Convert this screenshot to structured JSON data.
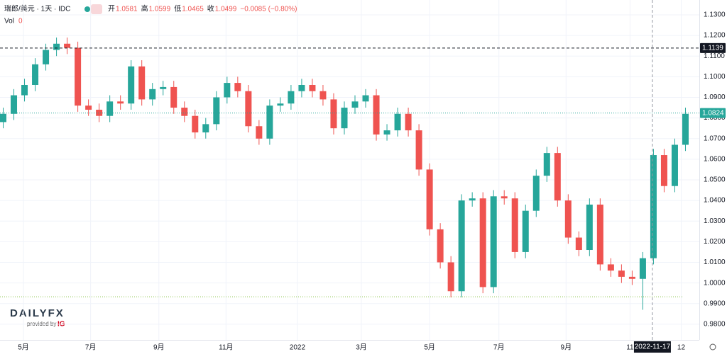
{
  "header": {
    "symbol": "瑞郎/美元 · 1天 · IDC",
    "ohlc": [
      {
        "label": "开",
        "value": "1.0581"
      },
      {
        "label": "高",
        "value": "1.0599"
      },
      {
        "label": "低",
        "value": "1.0465"
      },
      {
        "label": "收",
        "value": "1.0499"
      }
    ],
    "change": "−0.0085 (−0.80%)",
    "volume_label": "Vol",
    "volume": "0"
  },
  "logo": {
    "brand": "DAILYFX",
    "provided_by": "provided by",
    "partner": "IG"
  },
  "chart_data": {
    "type": "candlestick",
    "open": [
      1.078,
      1.082,
      1.091,
      1.096,
      1.106,
      1.113,
      1.116,
      1.114,
      1.086,
      1.084,
      1.081,
      1.088,
      1.087,
      1.105,
      1.089,
      1.094,
      1.095,
      1.085,
      1.081,
      1.073,
      1.077,
      1.09,
      1.097,
      1.093,
      1.076,
      1.07,
      1.086,
      1.087,
      1.093,
      1.096,
      1.093,
      1.089,
      1.075,
      1.085,
      1.088,
      1.091,
      1.072,
      1.074,
      1.082,
      1.074,
      1.055,
      1.026,
      1.01,
      0.996,
      1.04,
      1.041,
      0.998,
      1.042,
      1.041,
      1.015,
      1.035,
      1.052,
      1.063,
      1.04,
      1.022,
      1.016,
      1.038,
      1.009,
      1.006,
      1.003,
      1.002,
      1.012,
      1.062,
      1.047,
      1.067
    ],
    "high": [
      1.085,
      1.094,
      1.099,
      1.109,
      1.116,
      1.119,
      1.119,
      1.117,
      1.089,
      1.087,
      1.091,
      1.091,
      1.108,
      1.108,
      1.097,
      1.098,
      1.098,
      1.088,
      1.084,
      1.08,
      1.093,
      1.1,
      1.1,
      1.096,
      1.079,
      1.089,
      1.09,
      1.096,
      1.099,
      1.099,
      1.096,
      1.092,
      1.088,
      1.091,
      1.094,
      1.094,
      1.077,
      1.085,
      1.085,
      1.077,
      1.058,
      1.029,
      1.013,
      1.043,
      1.044,
      1.044,
      1.045,
      1.045,
      1.044,
      1.038,
      1.055,
      1.066,
      1.066,
      1.043,
      1.025,
      1.041,
      1.041,
      1.012,
      1.009,
      1.006,
      1.015,
      1.065,
      1.065,
      1.07,
      1.085
    ],
    "low": [
      1.075,
      1.079,
      1.088,
      1.093,
      1.103,
      1.11,
      1.111,
      1.083,
      1.081,
      1.078,
      1.078,
      1.084,
      1.084,
      1.086,
      1.086,
      1.091,
      1.082,
      1.078,
      1.07,
      1.07,
      1.074,
      1.087,
      1.09,
      1.073,
      1.067,
      1.067,
      1.083,
      1.084,
      1.09,
      1.09,
      1.086,
      1.072,
      1.072,
      1.082,
      1.085,
      1.069,
      1.069,
      1.071,
      1.071,
      1.052,
      1.023,
      1.007,
      0.993,
      0.993,
      1.037,
      0.995,
      0.995,
      1.038,
      1.012,
      1.012,
      1.032,
      1.049,
      1.037,
      1.019,
      1.013,
      1.013,
      1.006,
      1.003,
      1.0,
      0.999,
      0.987,
      1.009,
      1.044,
      1.044,
      1.064
    ],
    "close": [
      1.082,
      1.091,
      1.096,
      1.106,
      1.113,
      1.116,
      1.114,
      1.086,
      1.084,
      1.081,
      1.088,
      1.087,
      1.105,
      1.089,
      1.094,
      1.095,
      1.085,
      1.081,
      1.073,
      1.077,
      1.09,
      1.097,
      1.093,
      1.076,
      1.07,
      1.086,
      1.087,
      1.093,
      1.096,
      1.093,
      1.089,
      1.075,
      1.085,
      1.088,
      1.091,
      1.072,
      1.074,
      1.082,
      1.074,
      1.055,
      1.026,
      1.01,
      0.996,
      1.04,
      1.041,
      0.998,
      1.042,
      1.041,
      1.015,
      1.035,
      1.052,
      1.063,
      1.04,
      1.022,
      1.016,
      1.038,
      1.009,
      1.006,
      1.003,
      1.002,
      1.012,
      1.062,
      1.047,
      1.067,
      1.082
    ],
    "up_color": "#26a69a",
    "down_color": "#ef5350",
    "xlim": [
      0,
      65.6
    ],
    "xticks": [
      {
        "value": 2.2,
        "label": "5月"
      },
      {
        "value": 8.5,
        "label": "7月"
      },
      {
        "value": 14.9,
        "label": "9月"
      },
      {
        "value": 21.2,
        "label": "11月"
      },
      {
        "value": 27.9,
        "label": "2022"
      },
      {
        "value": 33.9,
        "label": "3月"
      },
      {
        "value": 40.3,
        "label": "5月"
      },
      {
        "value": 46.8,
        "label": "7月"
      },
      {
        "value": 53.1,
        "label": "9月"
      },
      {
        "value": 59.1,
        "label": "11"
      },
      {
        "value": 63.9,
        "label": "12"
      }
    ],
    "ylim": [
      0.9724,
      1.1372
    ],
    "yticks": [
      {
        "value": 0.98,
        "label": "0.9800"
      },
      {
        "value": 0.99,
        "label": "0.9900"
      },
      {
        "value": 1.0,
        "label": "1.0000"
      },
      {
        "value": 1.01,
        "label": "1.0100"
      },
      {
        "value": 1.02,
        "label": "1.0200"
      },
      {
        "value": 1.03,
        "label": "1.0300"
      },
      {
        "value": 1.04,
        "label": "1.0400"
      },
      {
        "value": 1.05,
        "label": "1.0500"
      },
      {
        "value": 1.06,
        "label": "1.0600"
      },
      {
        "value": 1.07,
        "label": "1.0700"
      },
      {
        "value": 1.08,
        "label": "1.0800"
      },
      {
        "value": 1.09,
        "label": "1.0900"
      },
      {
        "value": 1.1,
        "label": "1.1000"
      },
      {
        "value": 1.11,
        "label": "1.1100"
      },
      {
        "value": 1.12,
        "label": "1.1200"
      },
      {
        "value": 1.13,
        "label": "1.1300"
      }
    ],
    "grid": true,
    "price_lines": [
      {
        "value": 1.1139,
        "label": "1.1139",
        "color": "#131722"
      },
      {
        "value": 1.0824,
        "label": "1.0824",
        "color": "#26a69a"
      }
    ],
    "low_line": 0.9933,
    "crosshair": {
      "value": 61.2,
      "label": "2022-11-17"
    }
  }
}
